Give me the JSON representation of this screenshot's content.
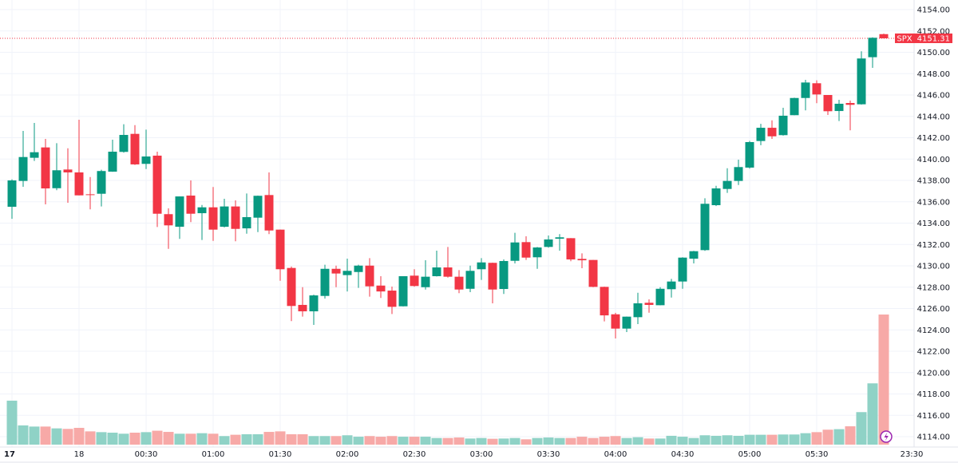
{
  "chart_data": {
    "type": "candlestick",
    "symbol": "SPX",
    "last_price": "4151.31",
    "colors": {
      "up": "#089981",
      "down": "#f23645",
      "volume_up": "#8fd2c6",
      "volume_down": "#f7a9a7",
      "grid": "#f0f3fa",
      "event_icon": "#9c27b0"
    },
    "y_axis": {
      "min": 4114,
      "max": 4154,
      "step": 2,
      "ticks": [
        "4154.00",
        "4152.00",
        "4150.00",
        "4148.00",
        "4146.00",
        "4144.00",
        "4142.00",
        "4140.00",
        "4138.00",
        "4136.00",
        "4134.00",
        "4132.00",
        "4130.00",
        "4128.00",
        "4126.00",
        "4124.00",
        "4122.00",
        "4120.00",
        "4118.00",
        "4116.00",
        "4114.00"
      ]
    },
    "x_axis": {
      "ticks": [
        "17",
        "18",
        "00:30",
        "01:00",
        "01:30",
        "02:00",
        "02:30",
        "03:00",
        "03:30",
        "04:00",
        "04:30",
        "05:00",
        "05:30",
        "23:30"
      ]
    },
    "grid": true,
    "candles": [
      [
        4135.53,
        4138.1,
        4134.4,
        4138.0
      ],
      [
        4137.95,
        4142.64,
        4137.4,
        4140.19
      ],
      [
        4140.12,
        4143.38,
        4139.82,
        4140.64
      ],
      [
        4141.09,
        4141.89,
        4135.76,
        4137.25
      ],
      [
        4137.27,
        4141.49,
        4137.08,
        4138.95
      ],
      [
        4139.02,
        4141.01,
        4135.91,
        4138.75
      ],
      [
        4138.75,
        4143.68,
        4136.6,
        4136.6
      ],
      [
        4136.7,
        4138.32,
        4135.29,
        4136.65
      ],
      [
        4136.75,
        4139.0,
        4135.56,
        4138.88
      ],
      [
        4138.82,
        4141.81,
        4138.8,
        4140.69
      ],
      [
        4140.67,
        4143.26,
        4140.6,
        4142.26
      ],
      [
        4142.36,
        4143.18,
        4139.45,
        4139.5
      ],
      [
        4139.55,
        4142.76,
        4139.07,
        4140.24
      ],
      [
        4140.32,
        4140.69,
        4133.64,
        4134.88
      ],
      [
        4134.84,
        4135.38,
        4131.59,
        4133.79
      ],
      [
        4133.66,
        4136.5,
        4132.52,
        4136.5
      ],
      [
        4136.58,
        4138.0,
        4134.09,
        4134.88
      ],
      [
        4134.93,
        4135.7,
        4132.42,
        4135.48
      ],
      [
        4135.48,
        4137.38,
        4132.34,
        4133.39
      ],
      [
        4133.66,
        4136.28,
        4133.6,
        4135.56
      ],
      [
        4135.56,
        4136.13,
        4132.3,
        4133.46
      ],
      [
        4133.51,
        4136.78,
        4133.01,
        4134.56
      ],
      [
        4134.51,
        4136.58,
        4133.16,
        4136.56
      ],
      [
        4136.63,
        4138.75,
        4132.97,
        4133.31
      ],
      [
        4133.39,
        4133.4,
        4128.6,
        4129.68
      ],
      [
        4129.8,
        4129.93,
        4124.82,
        4126.24
      ],
      [
        4126.34,
        4128.0,
        4125.24,
        4125.74
      ],
      [
        4125.74,
        4127.3,
        4124.47,
        4127.23
      ],
      [
        4127.18,
        4130.1,
        4126.93,
        4129.72
      ],
      [
        4129.72,
        4130.02,
        4128.0,
        4129.28
      ],
      [
        4129.13,
        4130.67,
        4127.6,
        4129.53
      ],
      [
        4129.42,
        4130.1,
        4127.93,
        4130.02
      ],
      [
        4130.02,
        4130.72,
        4127.11,
        4128.08
      ],
      [
        4128.15,
        4129.03,
        4126.99,
        4127.6
      ],
      [
        4127.68,
        4128.06,
        4125.49,
        4126.16
      ],
      [
        4126.21,
        4129.03,
        4126.2,
        4129.03
      ],
      [
        4129.08,
        4129.68,
        4128.05,
        4128.11
      ],
      [
        4128.0,
        4130.52,
        4127.78,
        4128.98
      ],
      [
        4129.03,
        4131.42,
        4129.0,
        4129.85
      ],
      [
        4129.85,
        4131.77,
        4128.9,
        4128.98
      ],
      [
        4128.98,
        4129.6,
        4127.44,
        4127.78
      ],
      [
        4127.85,
        4130.02,
        4127.53,
        4129.53
      ],
      [
        4129.68,
        4130.72,
        4128.68,
        4130.32
      ],
      [
        4130.28,
        4130.3,
        4126.49,
        4127.78
      ],
      [
        4127.83,
        4130.6,
        4127.36,
        4130.45
      ],
      [
        4130.47,
        4133.09,
        4130.22,
        4132.19
      ],
      [
        4132.22,
        4132.77,
        4130.55,
        4130.77
      ],
      [
        4130.8,
        4131.77,
        4129.72,
        4131.72
      ],
      [
        4131.77,
        4132.84,
        4131.7,
        4132.47
      ],
      [
        4132.54,
        4132.97,
        4131.42,
        4132.67
      ],
      [
        4132.59,
        4132.6,
        4130.43,
        4130.6
      ],
      [
        4130.65,
        4131.17,
        4129.78,
        4130.52
      ],
      [
        4130.55,
        4130.55,
        4128.0,
        4128.03
      ],
      [
        4128.03,
        4128.05,
        4124.79,
        4125.36
      ],
      [
        4125.46,
        4125.6,
        4123.2,
        4124.12
      ],
      [
        4124.12,
        4125.25,
        4123.79,
        4125.24
      ],
      [
        4125.19,
        4127.48,
        4124.54,
        4126.49
      ],
      [
        4126.54,
        4126.86,
        4125.61,
        4126.34
      ],
      [
        4126.31,
        4128.0,
        4126.3,
        4127.85
      ],
      [
        4127.81,
        4128.78,
        4127.03,
        4128.53
      ],
      [
        4128.53,
        4130.8,
        4127.85,
        4130.77
      ],
      [
        4130.67,
        4131.4,
        4130.22,
        4131.37
      ],
      [
        4131.47,
        4136.33,
        4131.4,
        4135.81
      ],
      [
        4135.68,
        4137.5,
        4135.6,
        4137.25
      ],
      [
        4137.2,
        4139.14,
        4136.83,
        4137.95
      ],
      [
        4137.95,
        4139.94,
        4137.57,
        4139.25
      ],
      [
        4139.2,
        4141.7,
        4139.1,
        4141.59
      ],
      [
        4141.69,
        4143.3,
        4141.3,
        4142.93
      ],
      [
        4142.93,
        4143.63,
        4141.89,
        4142.13
      ],
      [
        4142.24,
        4144.8,
        4142.2,
        4144.06
      ],
      [
        4144.11,
        4145.75,
        4144.1,
        4145.72
      ],
      [
        4145.72,
        4147.42,
        4144.56,
        4147.17
      ],
      [
        4147.1,
        4147.37,
        4145.23,
        4146.05
      ],
      [
        4146.0,
        4146.0,
        4144.13,
        4144.48
      ],
      [
        4144.5,
        4145.55,
        4143.56,
        4145.18
      ],
      [
        4145.25,
        4145.48,
        4142.69,
        4145.08
      ],
      [
        4145.13,
        4150.09,
        4145.1,
        4149.42
      ],
      [
        4149.54,
        4151.4,
        4148.54,
        4151.36
      ],
      [
        4151.7,
        4151.75,
        4151.3,
        4151.31
      ]
    ],
    "volume_relative": [
      33.8,
      14.8,
      13.9,
      13.9,
      12.5,
      12.1,
      12.9,
      10.2,
      9.6,
      9.2,
      8.4,
      9.2,
      9.6,
      10.7,
      9.8,
      8.4,
      8.4,
      8.8,
      8.4,
      6.6,
      7.6,
      8.0,
      8.0,
      9.8,
      10.2,
      8.0,
      8.0,
      6.6,
      6.6,
      6.6,
      7.2,
      6.1,
      6.6,
      6.1,
      6.6,
      6.1,
      6.1,
      6.1,
      5.1,
      5.1,
      5.5,
      4.7,
      5.1,
      4.5,
      4.7,
      5.1,
      4.1,
      5.1,
      5.5,
      5.1,
      5.1,
      6.1,
      5.1,
      6.1,
      6.6,
      5.1,
      5.7,
      4.7,
      4.7,
      6.8,
      6.1,
      5.1,
      7.2,
      6.8,
      7.2,
      6.8,
      7.6,
      7.6,
      7.6,
      7.8,
      7.8,
      8.8,
      9.6,
      11.5,
      11.9,
      14.1,
      25.0,
      47.1,
      100
    ]
  }
}
